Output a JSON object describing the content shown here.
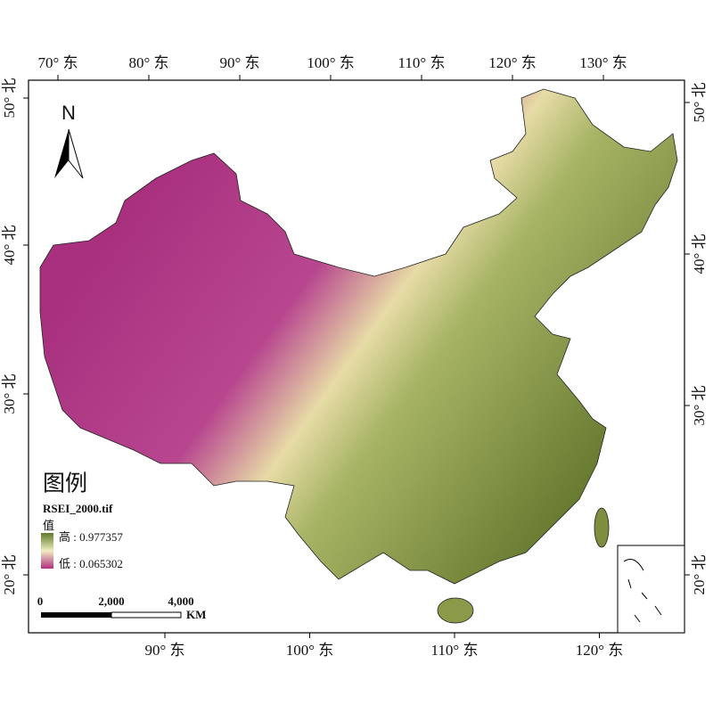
{
  "map": {
    "north": "N",
    "top_labels": [
      "70° 东",
      "80° 东",
      "90° 东",
      "100° 东",
      "110° 东",
      "120° 东",
      "130° 东"
    ],
    "bottom_labels": [
      "90° 东",
      "100° 东",
      "110° 东",
      "120° 东"
    ],
    "left_labels": [
      "50° 北",
      "40° 北",
      "30° 北",
      "20° 北"
    ],
    "right_labels": [
      "50° 北",
      "40° 北",
      "30° 北",
      "20° 北"
    ],
    "legend": {
      "title": "图例",
      "layer": "RSEI_2000.tif",
      "field": "值",
      "high": "高 : 0.977357",
      "low": "低 : 0.065302"
    },
    "scale_bar": {
      "labels": [
        "0",
        "2,000",
        "4,000"
      ],
      "unit": "KM"
    }
  }
}
